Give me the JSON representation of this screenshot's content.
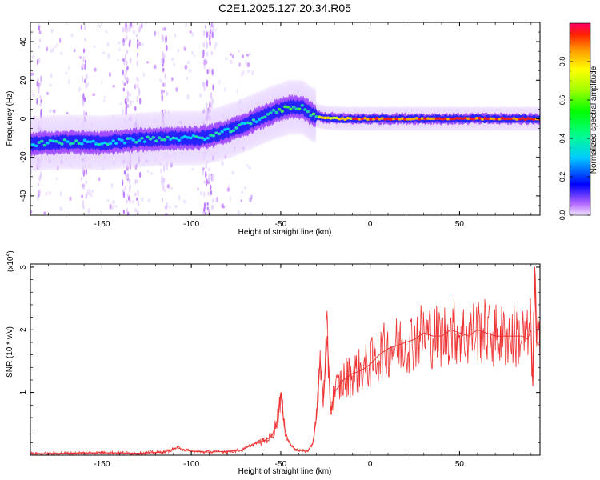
{
  "title": "C2E1.2025.127.20.34.R05",
  "charts": [
    {
      "type": "heatmap",
      "xlabel": "Height of straight line (km)",
      "ylabel": "Frequency (Hz)",
      "xlim": [
        -190,
        95
      ],
      "ylim": [
        -50,
        50
      ],
      "xticks": [
        -150,
        -100,
        -50,
        0,
        50
      ],
      "yticks": [
        -40,
        -20,
        0,
        20,
        40
      ],
      "ridge": {
        "x": [
          -190,
          -170,
          -150,
          -130,
          -110,
          -95,
          -85,
          -75,
          -65,
          -55,
          -45,
          -38,
          -32,
          -25,
          -15,
          0,
          20,
          50,
          95
        ],
        "y": [
          -13,
          -12,
          -12.5,
          -11,
          -10,
          -10,
          -8,
          -5,
          -1,
          3,
          6,
          6,
          2,
          0.5,
          0,
          0,
          0,
          0,
          0
        ]
      },
      "colorbar": {
        "label": "Normalized spectral amplitude",
        "range": [
          0,
          1
        ],
        "ticks": [
          "0.0",
          "0.2",
          "0.4",
          "0.6",
          "0.8"
        ]
      }
    },
    {
      "type": "line",
      "xlabel": "Height of straight line (km)",
      "ylabel": "SNR (10 * v/v)",
      "scale_label": "(x10",
      "scale_exp": "4",
      "scale_close": ")",
      "xlim": [
        -190,
        95
      ],
      "ylim": [
        0,
        3.05
      ],
      "xticks": [
        -150,
        -100,
        -50,
        0,
        50
      ],
      "yticks": [
        1,
        2,
        3
      ],
      "series": [
        {
          "color": "#ee3333",
          "x": [
            -190,
            -170,
            -150,
            -130,
            -115,
            -108,
            -100,
            -90,
            -80,
            -72,
            -65,
            -60,
            -55,
            -52,
            -50,
            -48,
            -46,
            -44,
            -42,
            -40,
            -38,
            -35,
            -32,
            -30,
            -28,
            -26,
            -24,
            -22,
            -20,
            -15,
            -10,
            -5,
            0,
            5,
            10,
            15,
            20,
            25,
            30,
            35,
            40,
            45,
            50,
            55,
            60,
            65,
            70,
            75,
            80,
            85,
            88,
            90,
            91,
            92,
            93,
            95
          ],
          "y": [
            0.02,
            0.03,
            0.04,
            0.03,
            0.05,
            0.12,
            0.06,
            0.05,
            0.06,
            0.08,
            0.18,
            0.22,
            0.3,
            0.55,
            1.0,
            0.45,
            0.25,
            0.15,
            0.1,
            0.08,
            0.07,
            0.06,
            0.2,
            0.6,
            1.5,
            0.9,
            1.9,
            0.7,
            1.0,
            1.2,
            1.3,
            1.35,
            1.45,
            1.6,
            1.7,
            1.75,
            1.8,
            1.85,
            1.95,
            1.9,
            1.9,
            2.0,
            1.95,
            1.9,
            2.0,
            1.95,
            1.9,
            1.9,
            1.9,
            1.9,
            1.85,
            2.0,
            1.1,
            3.0,
            1.8,
            1.75
          ]
        }
      ]
    }
  ]
}
